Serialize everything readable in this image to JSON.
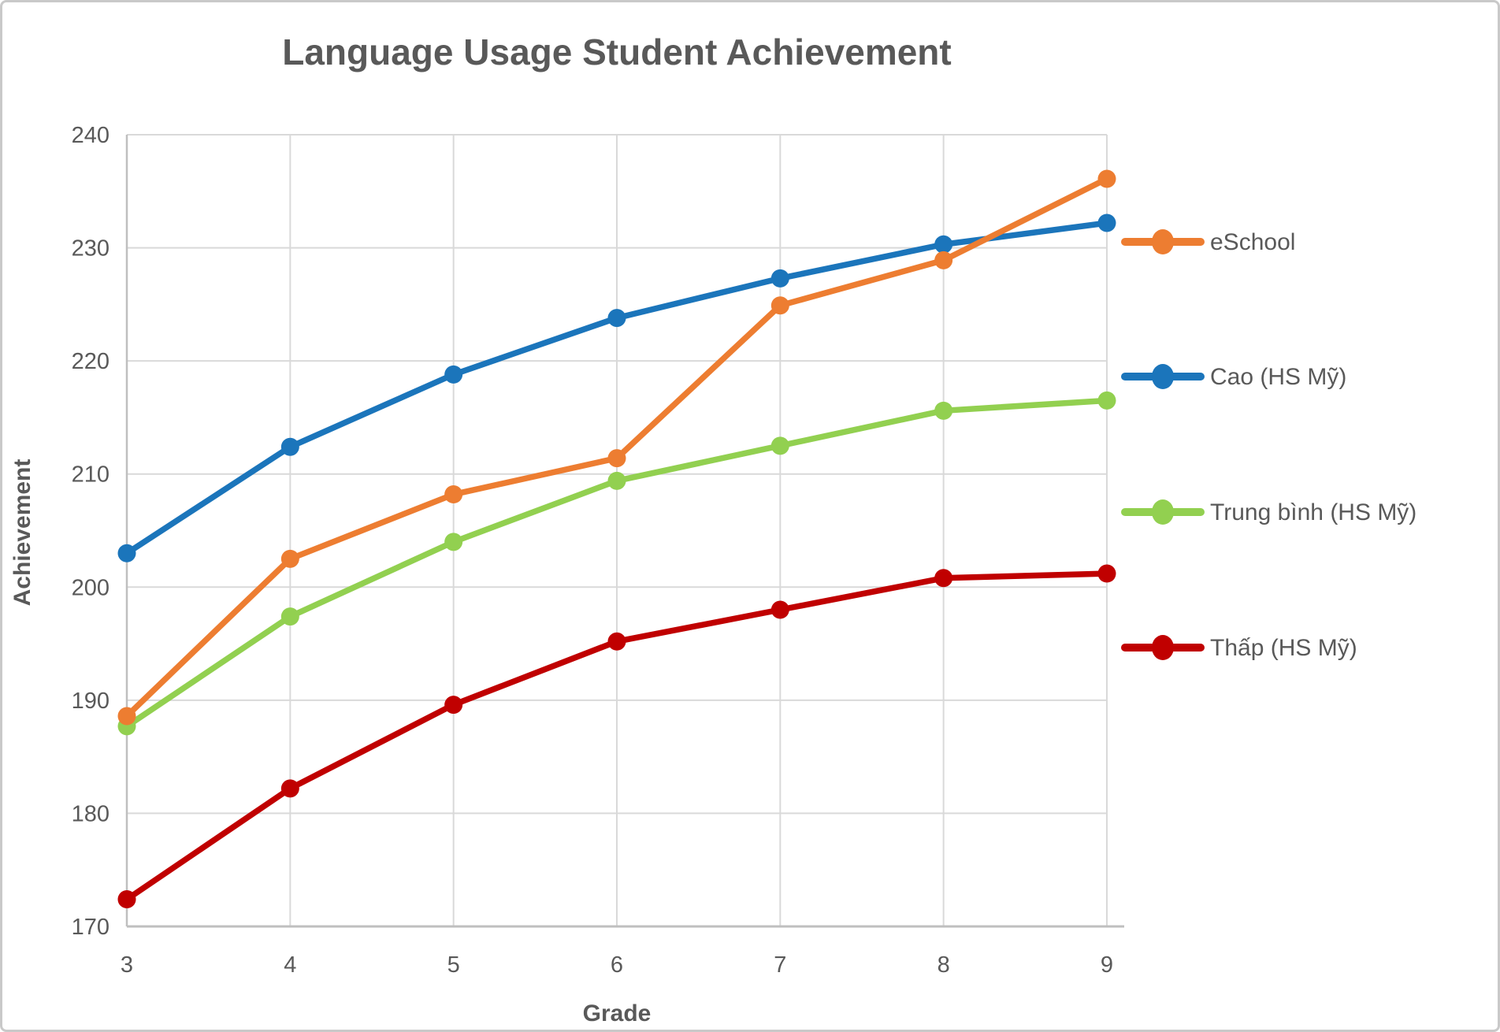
{
  "chart_data": {
    "type": "line",
    "title": "Language Usage Student Achievement",
    "xlabel": "Grade",
    "ylabel": "Achievement",
    "x": [
      3,
      4,
      5,
      6,
      7,
      8,
      9
    ],
    "xlim": [
      3,
      9
    ],
    "ylim": [
      170,
      240
    ],
    "ytick_step": 10,
    "grid": true,
    "legend_position": "right",
    "text_color": "#595959",
    "gridline_color": "#d9d9d9",
    "axisline_color": "#bfbfbf",
    "series": [
      {
        "name": "eSchool",
        "color": "#ED7D31",
        "values": [
          188.6,
          202.5,
          208.2,
          211.4,
          224.9,
          228.9,
          236.1
        ]
      },
      {
        "name": "Cao (HS Mỹ)",
        "color": "#1B75BB",
        "values": [
          203.0,
          212.4,
          218.8,
          223.8,
          227.3,
          230.3,
          232.2
        ]
      },
      {
        "name": "Trung bình (HS Mỹ)",
        "color": "#92D050",
        "values": [
          187.7,
          197.4,
          204.0,
          209.4,
          212.5,
          215.6,
          216.5
        ]
      },
      {
        "name": "Thấp (HS Mỹ)",
        "color": "#C00000",
        "values": [
          172.4,
          182.2,
          189.6,
          195.2,
          198.0,
          200.8,
          201.2
        ]
      }
    ],
    "draw_order": [
      1,
      2,
      3,
      0
    ]
  }
}
